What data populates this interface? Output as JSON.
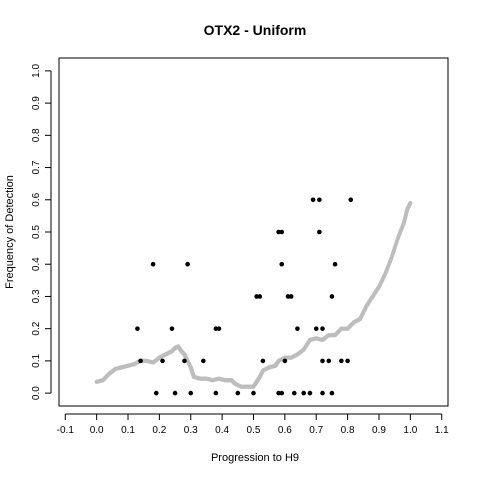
{
  "chart_data": {
    "type": "scatter",
    "title": "OTX2 - Uniform",
    "xlabel": "Progression to H9",
    "ylabel": "Frequency of Detection",
    "xlim": [
      -0.12,
      1.12
    ],
    "ylim": [
      -0.04,
      1.04
    ],
    "x_ticks": [
      "-0.1",
      "0.0",
      "0.1",
      "0.2",
      "0.3",
      "0.4",
      "0.5",
      "0.6",
      "0.7",
      "0.8",
      "0.9",
      "1.0",
      "1.1"
    ],
    "y_ticks": [
      "0.0",
      "0.1",
      "0.2",
      "0.3",
      "0.4",
      "0.5",
      "0.6",
      "0.7",
      "0.8",
      "0.9",
      "1.0"
    ],
    "grid": false,
    "legend": "none",
    "series": [
      {
        "color": "#000000",
        "marker": "filled-circle",
        "points": [
          [
            0.13,
            0.2
          ],
          [
            0.14,
            0.1
          ],
          [
            0.18,
            0.4
          ],
          [
            0.19,
            0.0
          ],
          [
            0.21,
            0.1
          ],
          [
            0.24,
            0.2
          ],
          [
            0.25,
            0.0
          ],
          [
            0.28,
            0.1
          ],
          [
            0.29,
            0.4
          ],
          [
            0.3,
            0.0
          ],
          [
            0.34,
            0.1
          ],
          [
            0.38,
            0.2
          ],
          [
            0.39,
            0.2
          ],
          [
            0.38,
            0.0
          ],
          [
            0.45,
            0.0
          ],
          [
            0.5,
            0.0
          ],
          [
            0.51,
            0.3
          ],
          [
            0.52,
            0.3
          ],
          [
            0.53,
            0.1
          ],
          [
            0.58,
            0.0
          ],
          [
            0.58,
            0.5
          ],
          [
            0.59,
            0.0
          ],
          [
            0.59,
            0.5
          ],
          [
            0.59,
            0.4
          ],
          [
            0.6,
            0.1
          ],
          [
            0.61,
            0.3
          ],
          [
            0.62,
            0.3
          ],
          [
            0.63,
            0.0
          ],
          [
            0.64,
            0.2
          ],
          [
            0.66,
            0.0
          ],
          [
            0.68,
            0.0
          ],
          [
            0.69,
            0.6
          ],
          [
            0.7,
            0.2
          ],
          [
            0.71,
            0.6
          ],
          [
            0.71,
            0.5
          ],
          [
            0.72,
            0.1
          ],
          [
            0.72,
            0.2
          ],
          [
            0.72,
            0.0
          ],
          [
            0.74,
            0.1
          ],
          [
            0.75,
            0.0
          ],
          [
            0.75,
            0.3
          ],
          [
            0.76,
            0.4
          ],
          [
            0.78,
            0.1
          ],
          [
            0.8,
            0.1
          ],
          [
            0.81,
            0.6
          ]
        ]
      },
      {
        "color": "#bdbdbd",
        "marker": "line",
        "points": [
          [
            0.0,
            0.035
          ],
          [
            0.02,
            0.04
          ],
          [
            0.04,
            0.06
          ],
          [
            0.06,
            0.075
          ],
          [
            0.08,
            0.08
          ],
          [
            0.1,
            0.085
          ],
          [
            0.12,
            0.09
          ],
          [
            0.14,
            0.1
          ],
          [
            0.16,
            0.1
          ],
          [
            0.18,
            0.095
          ],
          [
            0.2,
            0.11
          ],
          [
            0.22,
            0.12
          ],
          [
            0.24,
            0.13
          ],
          [
            0.25,
            0.14
          ],
          [
            0.26,
            0.145
          ],
          [
            0.27,
            0.13
          ],
          [
            0.28,
            0.12
          ],
          [
            0.29,
            0.1
          ],
          [
            0.3,
            0.08
          ],
          [
            0.31,
            0.05
          ],
          [
            0.33,
            0.045
          ],
          [
            0.35,
            0.045
          ],
          [
            0.37,
            0.04
          ],
          [
            0.39,
            0.045
          ],
          [
            0.41,
            0.04
          ],
          [
            0.43,
            0.04
          ],
          [
            0.44,
            0.03
          ],
          [
            0.46,
            0.02
          ],
          [
            0.48,
            0.02
          ],
          [
            0.5,
            0.02
          ],
          [
            0.51,
            0.035
          ],
          [
            0.52,
            0.05
          ],
          [
            0.53,
            0.07
          ],
          [
            0.55,
            0.08
          ],
          [
            0.57,
            0.085
          ],
          [
            0.58,
            0.1
          ],
          [
            0.6,
            0.11
          ],
          [
            0.62,
            0.11
          ],
          [
            0.64,
            0.12
          ],
          [
            0.66,
            0.135
          ],
          [
            0.68,
            0.165
          ],
          [
            0.7,
            0.17
          ],
          [
            0.72,
            0.165
          ],
          [
            0.74,
            0.18
          ],
          [
            0.76,
            0.18
          ],
          [
            0.78,
            0.2
          ],
          [
            0.8,
            0.2
          ],
          [
            0.82,
            0.22
          ],
          [
            0.84,
            0.23
          ],
          [
            0.86,
            0.27
          ],
          [
            0.88,
            0.3
          ],
          [
            0.9,
            0.33
          ],
          [
            0.92,
            0.37
          ],
          [
            0.94,
            0.42
          ],
          [
            0.96,
            0.48
          ],
          [
            0.98,
            0.53
          ],
          [
            0.99,
            0.57
          ],
          [
            1.0,
            0.59
          ]
        ]
      }
    ]
  }
}
